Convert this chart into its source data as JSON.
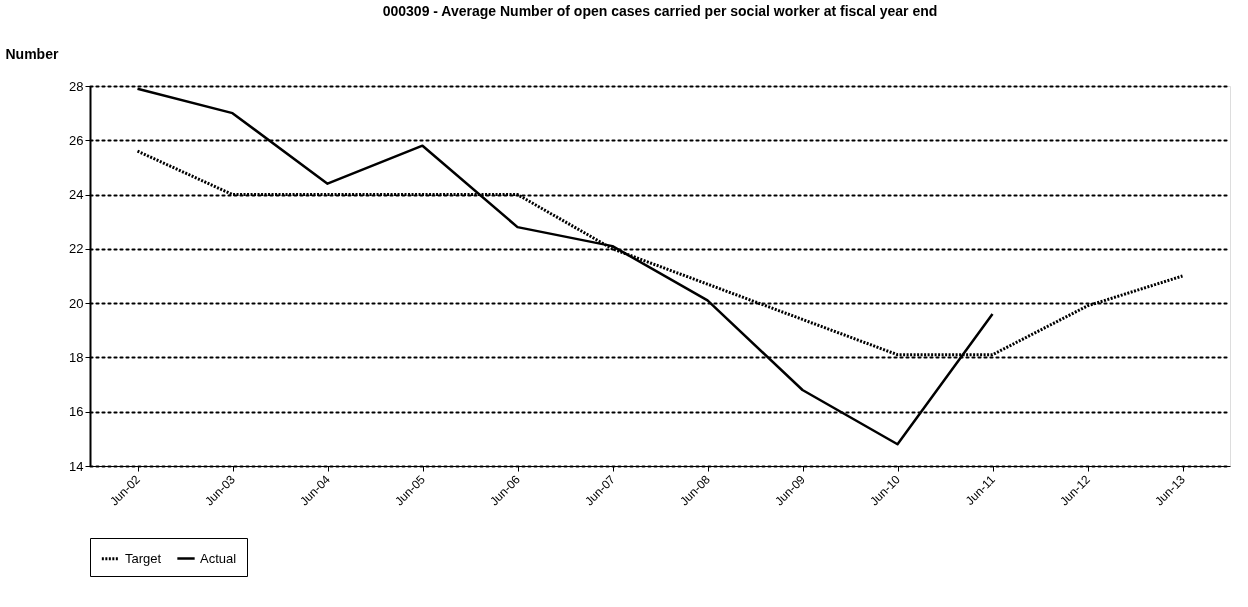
{
  "chart_data": {
    "type": "line",
    "title": "000309 - Average Number of open cases carried per social worker at fiscal year end",
    "ylabel": "Number",
    "categories": [
      "Jun-02",
      "Jun-03",
      "Jun-04",
      "Jun-05",
      "Jun-06",
      "Jun-07",
      "Jun-08",
      "Jun-09",
      "Jun-10",
      "Jun-11",
      "Jun-12",
      "Jun-13"
    ],
    "series": [
      {
        "name": "Target",
        "color": "#000000",
        "line_style": "dotted",
        "values": [
          25.6,
          24,
          24,
          24,
          24,
          22,
          20.7,
          19.4,
          18.1,
          18.1,
          19.9,
          21.0
        ]
      },
      {
        "name": "Actual",
        "color": "#000000",
        "line_style": "solid",
        "values": [
          27.9,
          27.0,
          24.4,
          25.8,
          22.8,
          22.1,
          20.1,
          16.8,
          14.8,
          19.6,
          null,
          null
        ]
      }
    ],
    "ylim": [
      14,
      28
    ],
    "yticks": [
      14,
      16,
      18,
      20,
      22,
      24,
      26,
      28
    ],
    "grid": "y",
    "legend": "bottom",
    "marker": "none"
  }
}
